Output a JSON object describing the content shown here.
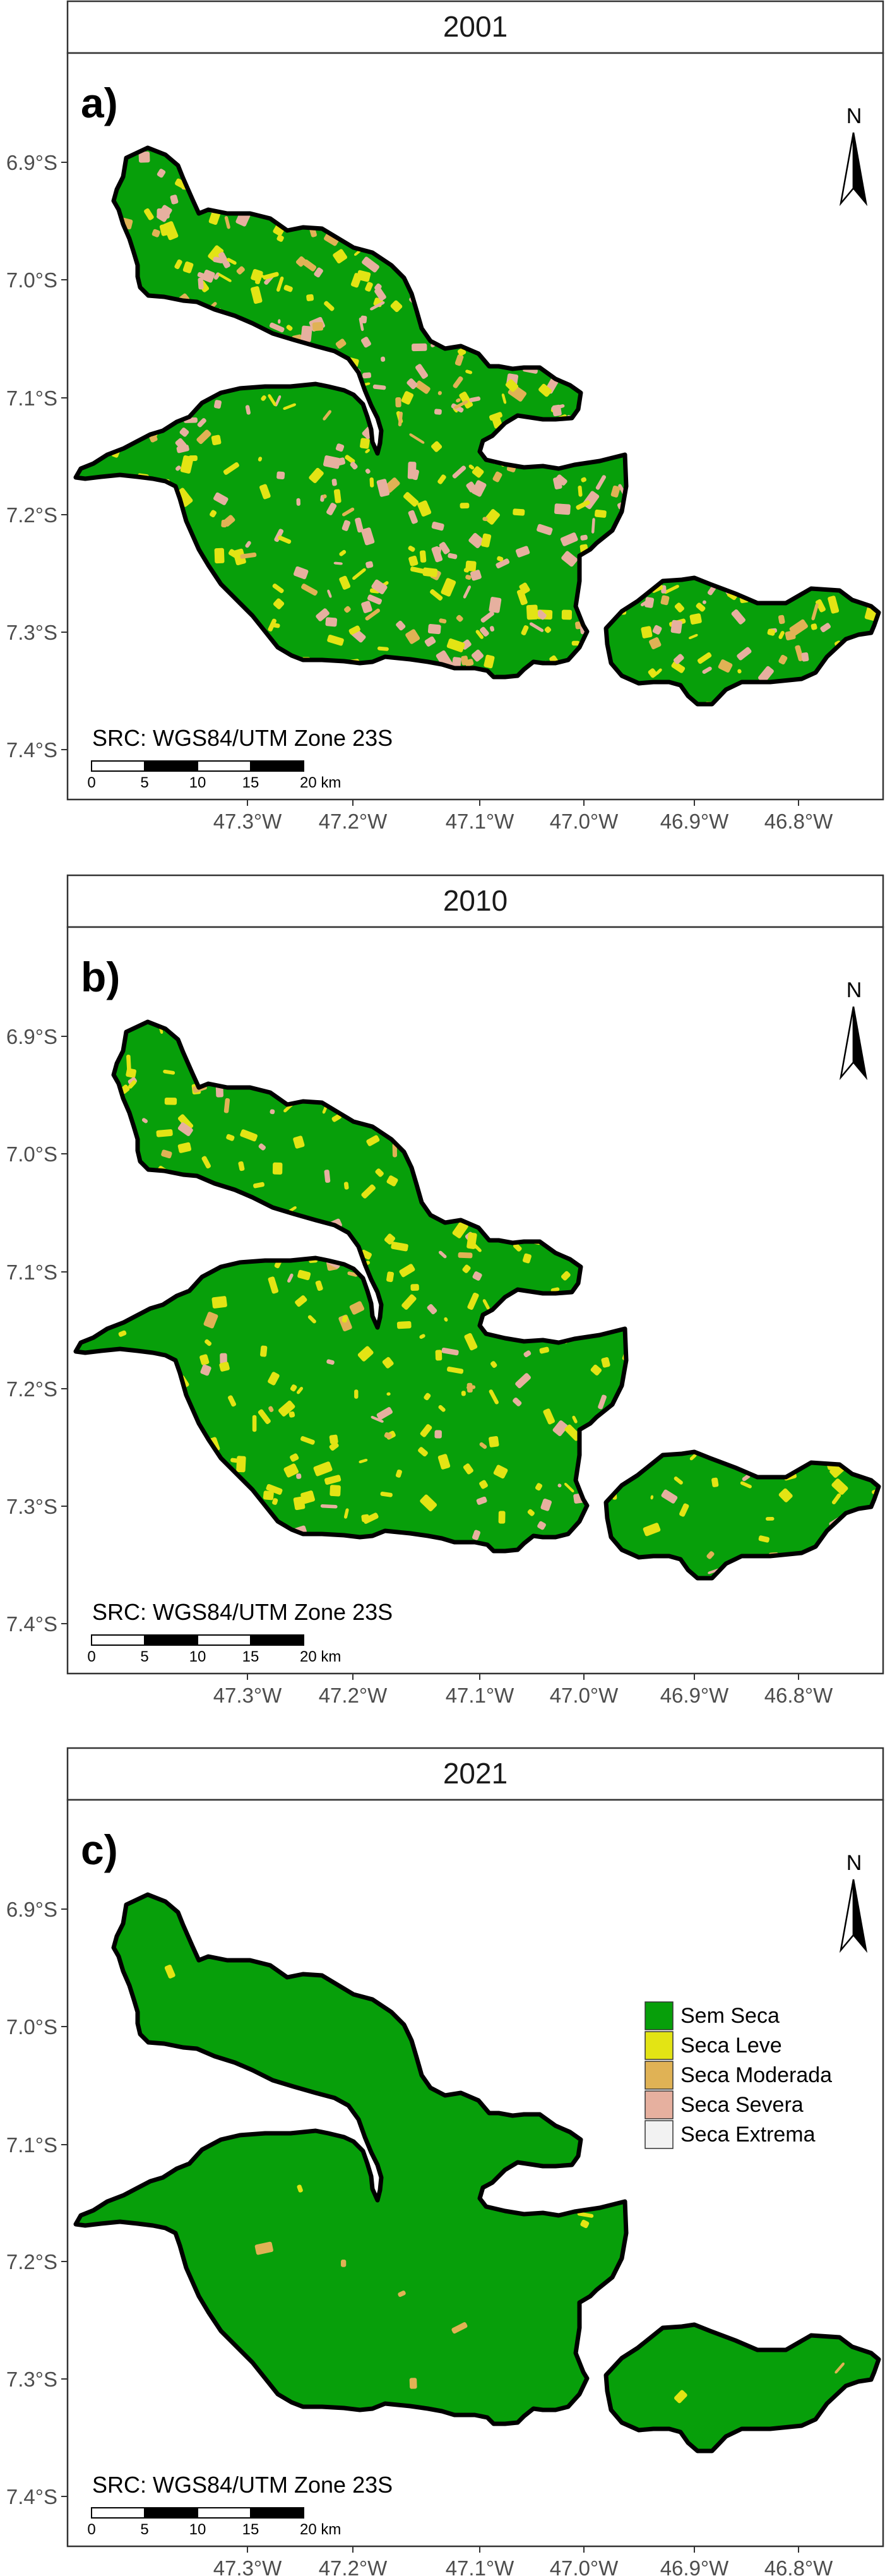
{
  "panels": [
    {
      "id": "2001",
      "title": "2001",
      "letter": "a)",
      "show_legend": false,
      "mix": {
        "green": 0.64,
        "yellow": 0.17,
        "orange": 0.06,
        "pink": 0.13
      }
    },
    {
      "id": "2010",
      "title": "2010",
      "letter": "b)",
      "show_legend": false,
      "mix": {
        "green": 0.8,
        "yellow": 0.14,
        "orange": 0.02,
        "pink": 0.04
      }
    },
    {
      "id": "2021",
      "title": "2021",
      "letter": "c)",
      "show_legend": true,
      "mix": {
        "green": 0.985,
        "yellow": 0.008,
        "orange": 0.007,
        "pink": 0.0
      }
    }
  ],
  "y_ticks": [
    "6.9°S",
    "7.0°S",
    "7.1°S",
    "7.2°S",
    "7.3°S",
    "7.4°S"
  ],
  "x_ticks": [
    "47.3°W",
    "47.2°W",
    "47.1°W",
    "47.0°W",
    "46.9°W",
    "46.8°W"
  ],
  "north_label": "N",
  "crs_label": "SRC: WGS84/UTM Zone 23S",
  "scalebar": {
    "labels": [
      "0",
      "5",
      "10",
      "15",
      "20 km"
    ]
  },
  "legend": [
    {
      "label": "Sem Seca",
      "color": "#079f0a"
    },
    {
      "label": "Seca Leve",
      "color": "#e3e414"
    },
    {
      "label": "Seca Moderada",
      "color": "#e0b255"
    },
    {
      "label": "Seca Severa",
      "color": "#e6b09f"
    },
    {
      "label": "Seca Extrema",
      "color": "#f2f2f2"
    }
  ],
  "colors": {
    "green": "#079f0a",
    "yellow": "#e3e414",
    "orange": "#e0b255",
    "pink": "#e6b09f"
  }
}
